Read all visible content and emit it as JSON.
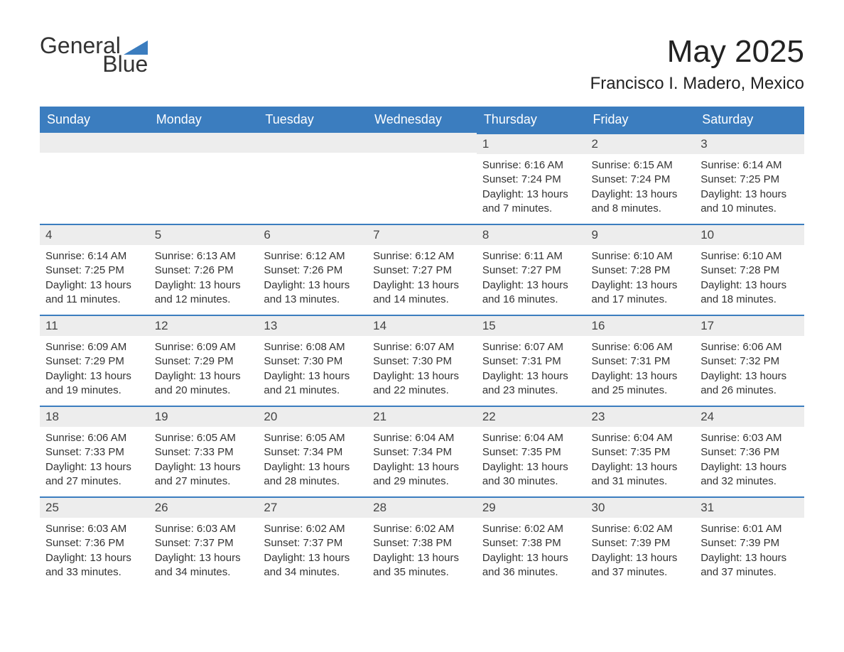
{
  "brand": {
    "word1": "General",
    "word2": "Blue",
    "accent_color": "#3b7dbf"
  },
  "title": "May 2025",
  "location": "Francisco I. Madero, Mexico",
  "columns": [
    "Sunday",
    "Monday",
    "Tuesday",
    "Wednesday",
    "Thursday",
    "Friday",
    "Saturday"
  ],
  "colors": {
    "header_bg": "#3b7dbf",
    "header_text": "#ffffff",
    "daynum_bg": "#ededed",
    "day_border": "#3b7dbf",
    "text": "#333333",
    "background": "#ffffff"
  },
  "fonts": {
    "title_size": 44,
    "location_size": 24,
    "header_size": 18,
    "daynum_size": 17,
    "body_size": 15
  },
  "leading_blanks": 4,
  "days": [
    {
      "n": 1,
      "sunrise": "6:16 AM",
      "sunset": "7:24 PM",
      "daylight": "13 hours and 7 minutes."
    },
    {
      "n": 2,
      "sunrise": "6:15 AM",
      "sunset": "7:24 PM",
      "daylight": "13 hours and 8 minutes."
    },
    {
      "n": 3,
      "sunrise": "6:14 AM",
      "sunset": "7:25 PM",
      "daylight": "13 hours and 10 minutes."
    },
    {
      "n": 4,
      "sunrise": "6:14 AM",
      "sunset": "7:25 PM",
      "daylight": "13 hours and 11 minutes."
    },
    {
      "n": 5,
      "sunrise": "6:13 AM",
      "sunset": "7:26 PM",
      "daylight": "13 hours and 12 minutes."
    },
    {
      "n": 6,
      "sunrise": "6:12 AM",
      "sunset": "7:26 PM",
      "daylight": "13 hours and 13 minutes."
    },
    {
      "n": 7,
      "sunrise": "6:12 AM",
      "sunset": "7:27 PM",
      "daylight": "13 hours and 14 minutes."
    },
    {
      "n": 8,
      "sunrise": "6:11 AM",
      "sunset": "7:27 PM",
      "daylight": "13 hours and 16 minutes."
    },
    {
      "n": 9,
      "sunrise": "6:10 AM",
      "sunset": "7:28 PM",
      "daylight": "13 hours and 17 minutes."
    },
    {
      "n": 10,
      "sunrise": "6:10 AM",
      "sunset": "7:28 PM",
      "daylight": "13 hours and 18 minutes."
    },
    {
      "n": 11,
      "sunrise": "6:09 AM",
      "sunset": "7:29 PM",
      "daylight": "13 hours and 19 minutes."
    },
    {
      "n": 12,
      "sunrise": "6:09 AM",
      "sunset": "7:29 PM",
      "daylight": "13 hours and 20 minutes."
    },
    {
      "n": 13,
      "sunrise": "6:08 AM",
      "sunset": "7:30 PM",
      "daylight": "13 hours and 21 minutes."
    },
    {
      "n": 14,
      "sunrise": "6:07 AM",
      "sunset": "7:30 PM",
      "daylight": "13 hours and 22 minutes."
    },
    {
      "n": 15,
      "sunrise": "6:07 AM",
      "sunset": "7:31 PM",
      "daylight": "13 hours and 23 minutes."
    },
    {
      "n": 16,
      "sunrise": "6:06 AM",
      "sunset": "7:31 PM",
      "daylight": "13 hours and 25 minutes."
    },
    {
      "n": 17,
      "sunrise": "6:06 AM",
      "sunset": "7:32 PM",
      "daylight": "13 hours and 26 minutes."
    },
    {
      "n": 18,
      "sunrise": "6:06 AM",
      "sunset": "7:33 PM",
      "daylight": "13 hours and 27 minutes."
    },
    {
      "n": 19,
      "sunrise": "6:05 AM",
      "sunset": "7:33 PM",
      "daylight": "13 hours and 27 minutes."
    },
    {
      "n": 20,
      "sunrise": "6:05 AM",
      "sunset": "7:34 PM",
      "daylight": "13 hours and 28 minutes."
    },
    {
      "n": 21,
      "sunrise": "6:04 AM",
      "sunset": "7:34 PM",
      "daylight": "13 hours and 29 minutes."
    },
    {
      "n": 22,
      "sunrise": "6:04 AM",
      "sunset": "7:35 PM",
      "daylight": "13 hours and 30 minutes."
    },
    {
      "n": 23,
      "sunrise": "6:04 AM",
      "sunset": "7:35 PM",
      "daylight": "13 hours and 31 minutes."
    },
    {
      "n": 24,
      "sunrise": "6:03 AM",
      "sunset": "7:36 PM",
      "daylight": "13 hours and 32 minutes."
    },
    {
      "n": 25,
      "sunrise": "6:03 AM",
      "sunset": "7:36 PM",
      "daylight": "13 hours and 33 minutes."
    },
    {
      "n": 26,
      "sunrise": "6:03 AM",
      "sunset": "7:37 PM",
      "daylight": "13 hours and 34 minutes."
    },
    {
      "n": 27,
      "sunrise": "6:02 AM",
      "sunset": "7:37 PM",
      "daylight": "13 hours and 34 minutes."
    },
    {
      "n": 28,
      "sunrise": "6:02 AM",
      "sunset": "7:38 PM",
      "daylight": "13 hours and 35 minutes."
    },
    {
      "n": 29,
      "sunrise": "6:02 AM",
      "sunset": "7:38 PM",
      "daylight": "13 hours and 36 minutes."
    },
    {
      "n": 30,
      "sunrise": "6:02 AM",
      "sunset": "7:39 PM",
      "daylight": "13 hours and 37 minutes."
    },
    {
      "n": 31,
      "sunrise": "6:01 AM",
      "sunset": "7:39 PM",
      "daylight": "13 hours and 37 minutes."
    }
  ],
  "labels": {
    "sunrise": "Sunrise: ",
    "sunset": "Sunset: ",
    "daylight": "Daylight: "
  }
}
